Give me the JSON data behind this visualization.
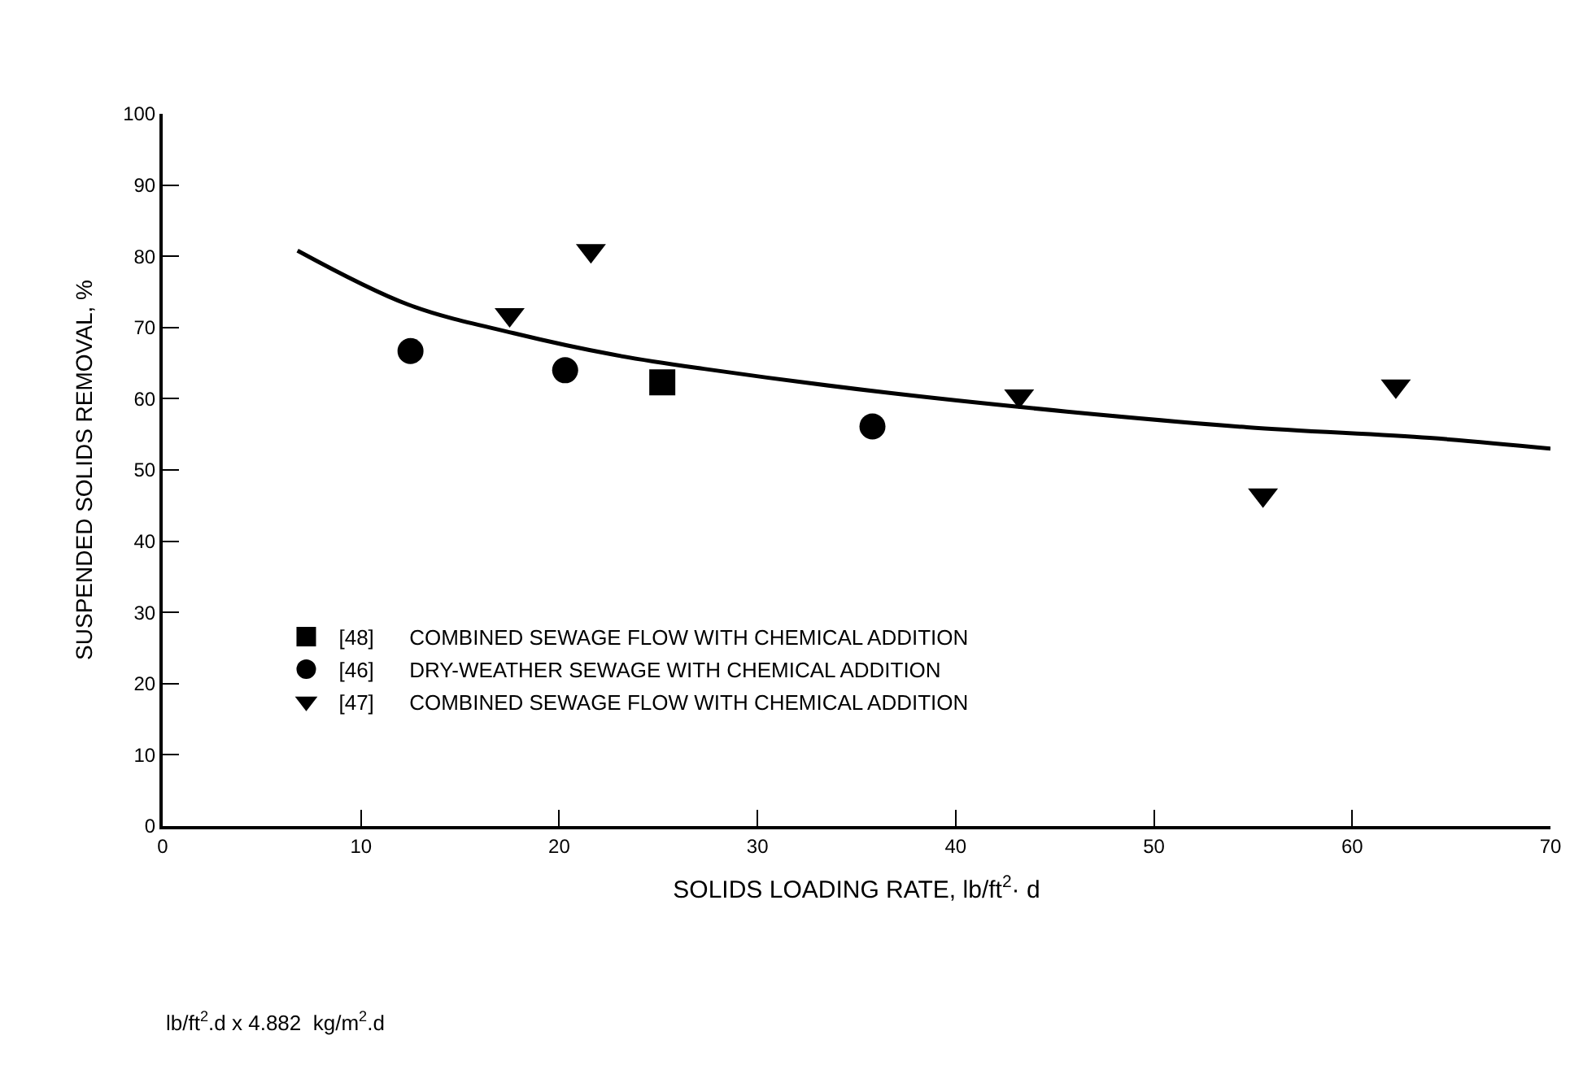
{
  "chart_data": {
    "type": "scatter",
    "xlabel": "SOLIDS LOADING RATE, lb/ft$^{2}$· d",
    "ylabel": "SUSPENDED SOLIDS REMOVAL, %",
    "annotations": [
      "lb/ft$^{2}$.d x 4.882  kg/m$^{2}$.d"
    ],
    "xlim": [
      0,
      70
    ],
    "xticks": [
      0,
      10,
      20,
      30,
      40,
      50,
      60,
      70
    ],
    "ylim": [
      0,
      100
    ],
    "yticks": [
      0,
      10,
      20,
      30,
      40,
      50,
      60,
      70,
      80,
      90,
      100
    ],
    "legend": "bottom left",
    "series": [
      {
        "name": "[48]      COMBINED SEWAGE FLOW WITH CHEMICAL ADDITION",
        "color": "#000000",
        "marker": "square",
        "x": [
          25.2
        ],
        "values": [
          62.3
        ]
      },
      {
        "name": "[46]      DRY-WEATHER SEWAGE WITH CHEMICAL ADDITION",
        "color": "#000000",
        "marker": "circle",
        "x": [
          12.5,
          20.3,
          35.8
        ],
        "values": [
          66.7,
          64.0,
          56.1
        ]
      },
      {
        "name": "[47]      COMBINED SEWAGE FLOW WITH CHEMICAL ADDITION",
        "color": "#000000",
        "marker": "triangle",
        "x": [
          17.5,
          21.6,
          43.2,
          55.5,
          62.2
        ],
        "values": [
          71.8,
          80.8,
          60.4,
          46.5,
          61.8
        ]
      },
      {
        "type": "line",
        "color": "#000000",
        "marker": "none",
        "line_style": "solid",
        "x": [
          6.8,
          12.4,
          17.7,
          22.7,
          27.3,
          36.4,
          45.6,
          54.7,
          63.9,
          70
        ],
        "values": [
          80.8,
          73.2,
          69.2,
          66.2,
          64.2,
          60.9,
          58.2,
          56.0,
          54.5,
          53.0
        ]
      }
    ]
  }
}
